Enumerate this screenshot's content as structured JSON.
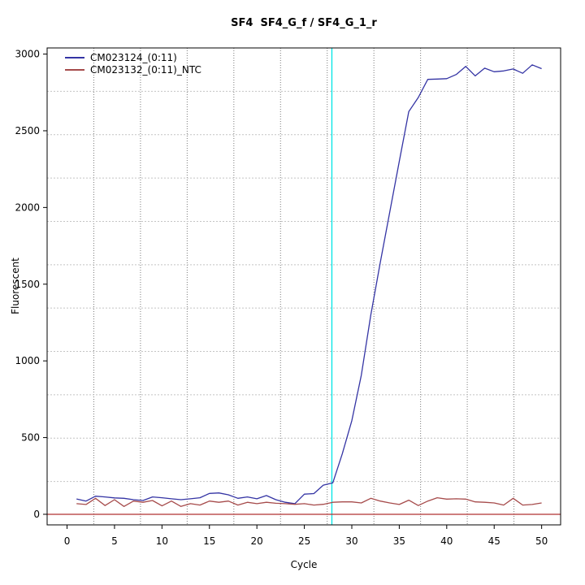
{
  "title": "SF4  SF4_G_f / SF4_G_1_r",
  "chart_data": {
    "type": "line",
    "title": "SF4  SF4_G_f / SF4_G_1_r",
    "xlabel": "Cycle",
    "ylabel": "Fluorescent",
    "xlim": [
      -2.1,
      52.0
    ],
    "ylim": [
      -69,
      3040
    ],
    "x_ticks": [
      0,
      5,
      10,
      15,
      20,
      25,
      30,
      35,
      40,
      45,
      50
    ],
    "y_ticks": [
      0,
      500,
      1000,
      1500,
      2000,
      2500,
      3000
    ],
    "grid": {
      "on": true,
      "cells_x": 11,
      "cells_y": 11,
      "style": "dotted",
      "v_color": "#7a7a7a",
      "h_color": "#c4c4c4"
    },
    "threshold_vline_x": 27.9,
    "threshold_vline_color": "#00e5e5",
    "zero_hline_y": 0,
    "zero_hline_color": "#b03030",
    "axis_color": "#000000",
    "legend_position": "top-left",
    "x": [
      1,
      2,
      3,
      4,
      5,
      6,
      7,
      8,
      9,
      10,
      11,
      12,
      13,
      14,
      15,
      16,
      17,
      18,
      19,
      20,
      21,
      22,
      23,
      24,
      25,
      26,
      27,
      28,
      29,
      30,
      31,
      32,
      33,
      34,
      35,
      36,
      37,
      38,
      39,
      40,
      41,
      42,
      43,
      44,
      45,
      46,
      47,
      48,
      49,
      50
    ],
    "series": [
      {
        "name": "CM023124_(0:11)",
        "color": "#3434a4",
        "values": [
          100,
          86,
          118,
          113,
          107,
          104,
          95,
          90,
          113,
          108,
          101,
          95,
          101,
          108,
          136,
          139,
          127,
          104,
          113,
          101,
          122,
          95,
          78,
          69,
          131,
          135,
          190,
          205,
          395,
          610,
          907,
          1300,
          1640,
          1970,
          2300,
          2625,
          2717,
          2835,
          2837,
          2840,
          2867,
          2920,
          2858,
          2908,
          2885,
          2890,
          2903,
          2875,
          2930,
          2905
        ]
      },
      {
        "name": "CM023132_(0:11)_NTC",
        "color": "#a64b4b",
        "values": [
          69,
          64,
          104,
          57,
          95,
          51,
          86,
          78,
          90,
          55,
          86,
          51,
          69,
          60,
          86,
          78,
          86,
          60,
          78,
          69,
          78,
          72,
          69,
          65,
          69,
          60,
          65,
          78,
          81,
          81,
          74,
          104,
          86,
          74,
          64,
          92,
          57,
          86,
          108,
          99,
          101,
          99,
          81,
          78,
          74,
          60,
          104,
          60,
          64,
          74
        ]
      }
    ]
  }
}
